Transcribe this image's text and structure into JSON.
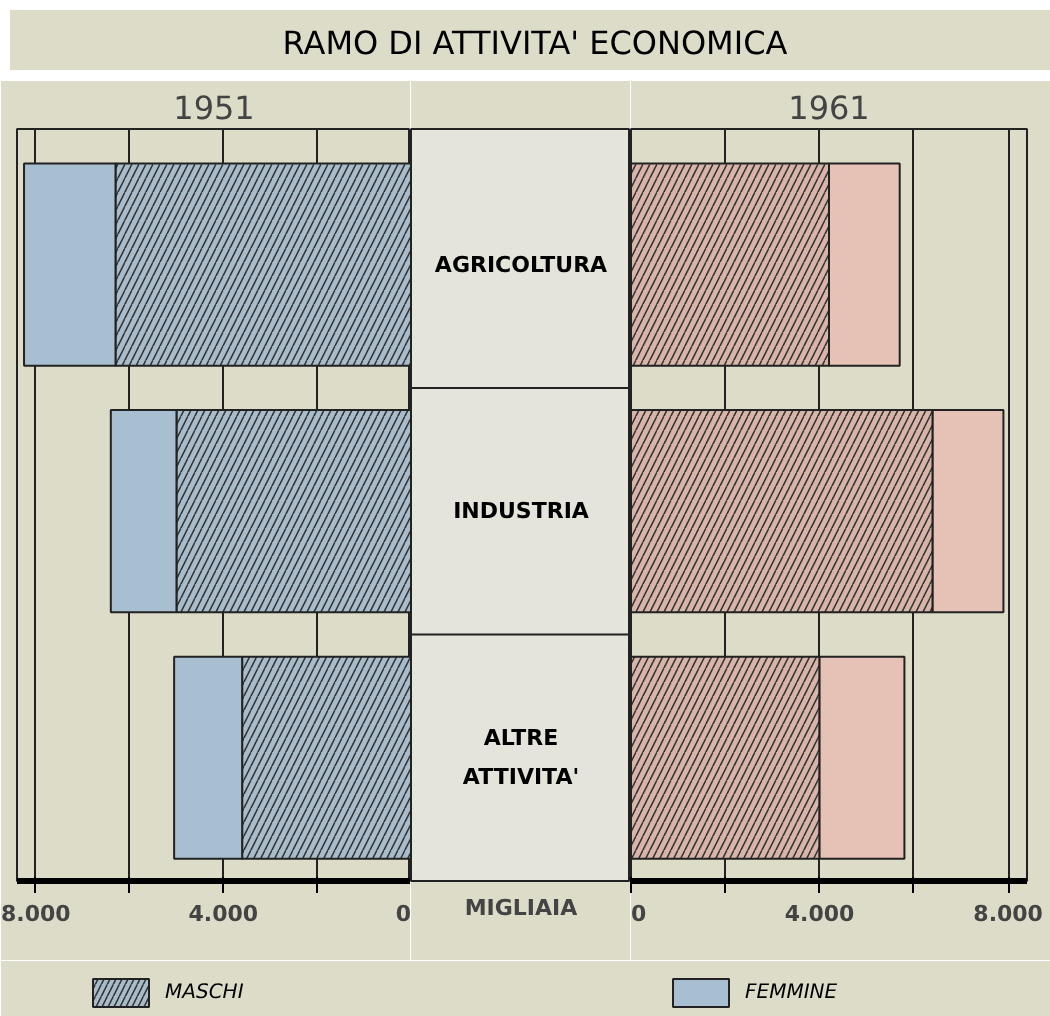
{
  "chart_data": [
    {
      "type": "bar",
      "orientation": "horizontal",
      "stacked": true,
      "title": "RAMO DI ATTIVITA' ECONOMICA",
      "subtitle": "1951",
      "xlabel": "MIGLIAIA",
      "categories": [
        "AGRICOLTURA",
        "INDUSTRIA",
        "ALTRE ATTIVITA'"
      ],
      "series": [
        {
          "name": "MASCHI",
          "color": "#a9bccb",
          "values": [
            6300,
            5000,
            3600
          ]
        },
        {
          "name": "FEMMINE",
          "color": "#a8bfd2",
          "values": [
            1950,
            1400,
            1450
          ]
        }
      ],
      "xlim": [
        8400,
        0
      ],
      "xticks": [
        {
          "value": 8000,
          "label": "8.000"
        },
        {
          "value": 6000,
          "label": null
        },
        {
          "value": 4000,
          "label": "4.000"
        },
        {
          "value": 2000,
          "label": null
        },
        0
      ],
      "grid": "x",
      "legend": "bottom"
    },
    {
      "type": "bar",
      "orientation": "horizontal",
      "stacked": true,
      "title": "1961",
      "categories": [
        null,
        null,
        null
      ],
      "tick_labels": "x",
      "series": [
        {
          "color": "#d8b4a9",
          "values": [
            4200,
            6400,
            4000
          ]
        },
        {
          "color": "#e6c1b6",
          "values": [
            1500,
            1500,
            1800
          ]
        }
      ],
      "xlim": [
        0,
        8400
      ],
      "xticks": [
        0,
        {
          "value": 2000,
          "label": null
        },
        {
          "value": 4000,
          "label": "4.000"
        },
        {
          "value": 6000,
          "label": null
        },
        {
          "value": 8000,
          "label": "8.000"
        }
      ],
      "grid": "x"
    }
  ]
}
